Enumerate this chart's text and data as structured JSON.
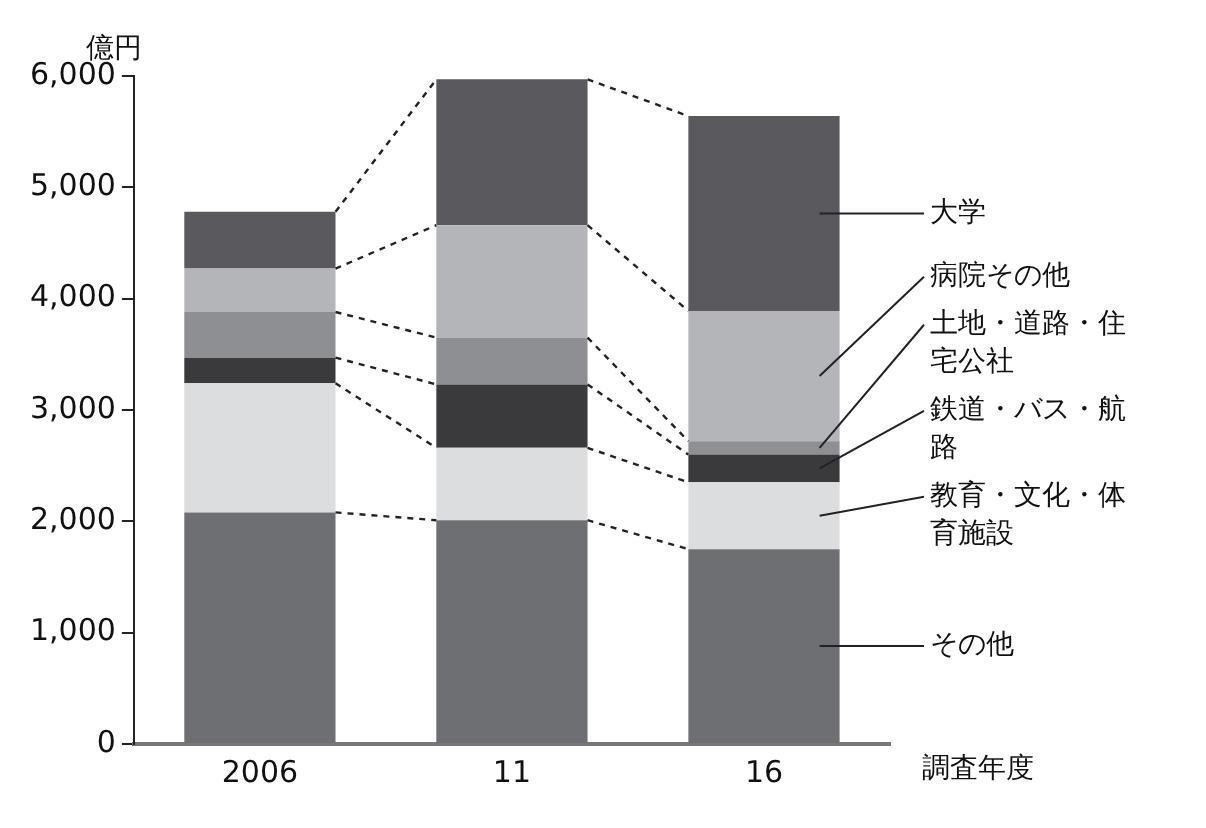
{
  "chart_data": {
    "type": "bar",
    "stacked": true,
    "ylabel": "億円",
    "xlabel": "調査年度",
    "categories": [
      "2006",
      "11",
      "16"
    ],
    "series": [
      {
        "name": "その他",
        "color": "#6e6f73",
        "values": [
          2080,
          2010,
          1750
        ]
      },
      {
        "name": "教育・文化・体育施設",
        "color": "#dcdddf",
        "values": [
          1160,
          650,
          600
        ]
      },
      {
        "name": "鉄道・バス・航路",
        "color": "#3a3a3c",
        "values": [
          230,
          570,
          250
        ]
      },
      {
        "name": "土地・道路・住宅公社",
        "color": "#8e8f93",
        "values": [
          410,
          420,
          120
        ]
      },
      {
        "name": "病院その他",
        "color": "#b4b5b8",
        "values": [
          390,
          1010,
          1170
        ]
      },
      {
        "name": "大学",
        "color": "#5a5a5e",
        "values": [
          510,
          1310,
          1750
        ]
      }
    ],
    "ylim": [
      0,
      6000
    ],
    "yticks": [
      0,
      {
        "value": 1000,
        "label": "1,000"
      },
      {
        "value": 2000,
        "label": "2,000"
      },
      {
        "value": 3000,
        "label": "3,000"
      },
      {
        "value": 4000,
        "label": "4,000"
      },
      {
        "value": 5000,
        "label": "5,000"
      },
      {
        "value": 6000,
        "label": "6,000"
      }
    ],
    "grid": false,
    "legend": "right"
  }
}
